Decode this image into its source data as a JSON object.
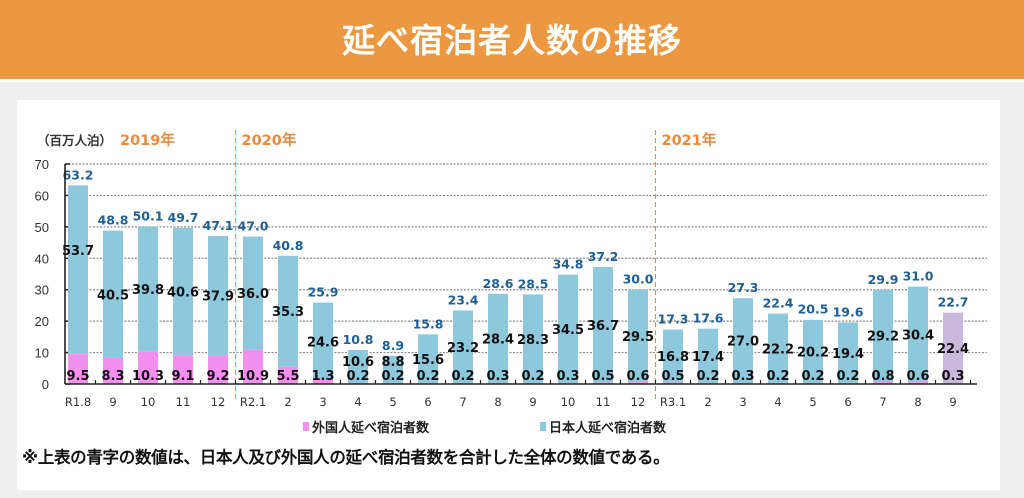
{
  "banner": {
    "title": "延べ宿泊者人数の推移"
  },
  "note": "※上表の青字の数値は、日本人及び外国人の延べ宿泊者数を合計した全体の数値である。",
  "colors": {
    "banner": "#ec9840",
    "japanese": "#8ec8dc",
    "foreign": "#f48ff0",
    "highlight": "#c9b8dc",
    "total_label": "#1e5f94",
    "year_label": "#ea8a3a"
  },
  "chart_data": {
    "type": "bar",
    "stacked": true,
    "title": "延べ宿泊者人数の推移",
    "ylabel": "（百万人泊）",
    "xlabel": "",
    "ylim": [
      0,
      70
    ],
    "yticks": [
      0,
      10,
      20,
      30,
      40,
      50,
      60,
      70
    ],
    "grid": true,
    "legend_position": "bottom",
    "year_markers": [
      {
        "label": "2019年",
        "before_index": 0
      },
      {
        "label": "2020年",
        "before_index": 5
      },
      {
        "label": "2021年",
        "before_index": 17
      }
    ],
    "categories": [
      "R1.8",
      "9",
      "10",
      "11",
      "12",
      "R2.1",
      "2",
      "3",
      "4",
      "5",
      "6",
      "7",
      "8",
      "9",
      "10",
      "11",
      "12",
      "R3.1",
      "2",
      "3",
      "4",
      "5",
      "6",
      "7",
      "8",
      "9"
    ],
    "series": [
      {
        "name": "外国人延べ宿泊者数",
        "color_key": "foreign",
        "values": [
          9.5,
          8.3,
          10.3,
          9.1,
          9.2,
          10.9,
          5.5,
          1.3,
          0.2,
          0.2,
          0.2,
          0.2,
          0.3,
          0.2,
          0.3,
          0.5,
          0.6,
          0.5,
          0.2,
          0.3,
          0.2,
          0.2,
          0.2,
          0.8,
          0.6,
          0.3
        ]
      },
      {
        "name": "日本人延べ宿泊者数",
        "color_key": "japanese",
        "values": [
          53.7,
          40.5,
          39.8,
          40.6,
          37.9,
          36.0,
          35.3,
          24.6,
          10.6,
          8.8,
          15.6,
          23.2,
          28.4,
          28.3,
          34.5,
          36.7,
          29.5,
          16.8,
          17.4,
          27.0,
          22.2,
          20.2,
          19.4,
          29.2,
          30.4,
          22.4
        ]
      }
    ],
    "totals": [
      63.2,
      48.8,
      50.1,
      49.7,
      47.1,
      47.0,
      40.8,
      25.9,
      10.8,
      8.9,
      15.8,
      23.4,
      28.6,
      28.5,
      34.8,
      37.2,
      30.0,
      17.3,
      17.6,
      27.3,
      22.4,
      20.5,
      19.6,
      29.9,
      31.0,
      22.7
    ],
    "highlighted_index": 25
  }
}
